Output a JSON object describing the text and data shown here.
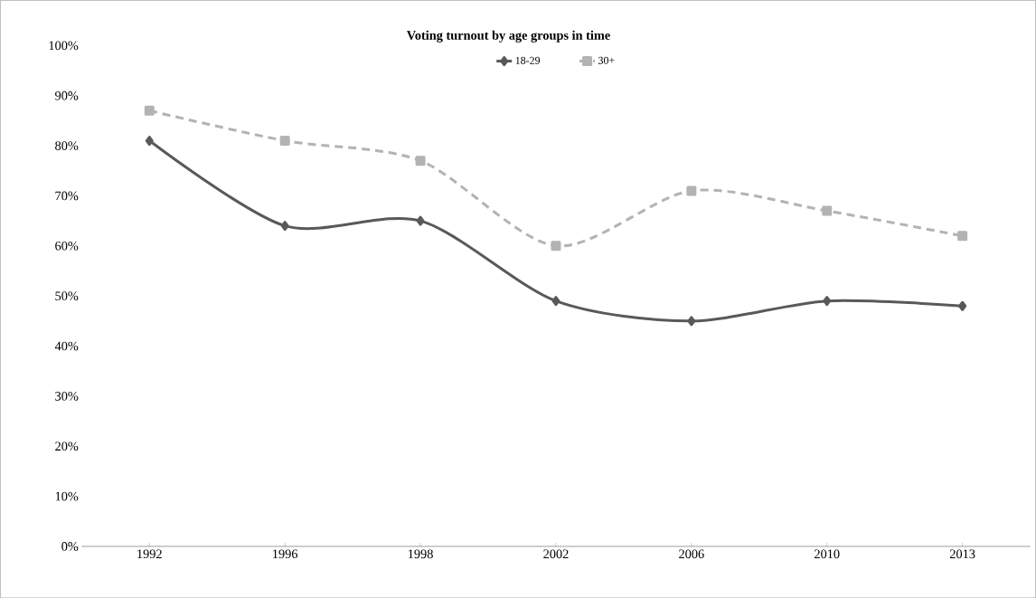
{
  "chart_data": {
    "type": "line",
    "title": "Voting turnout by age groups in time",
    "categories": [
      "1992",
      "1996",
      "1998",
      "2002",
      "2006",
      "2010",
      "2013"
    ],
    "series": [
      {
        "name": "18-29",
        "color": "#595959",
        "values": [
          81,
          64,
          65,
          49,
          45,
          49,
          48
        ],
        "marker": "diamond",
        "line_style": "solid"
      },
      {
        "name": "30+",
        "color": "#b3b3b3",
        "values": [
          87,
          81,
          77,
          60,
          71,
          67,
          62
        ],
        "marker": "square",
        "line_style": "dashed"
      }
    ],
    "ylim": [
      0,
      100
    ],
    "yticks": [
      {
        "value": 0,
        "label": "0%"
      },
      {
        "value": 10,
        "label": "10%"
      },
      {
        "value": 20,
        "label": "20%"
      },
      {
        "value": 30,
        "label": "30%"
      },
      {
        "value": 40,
        "label": "40%"
      },
      {
        "value": 50,
        "label": "50%"
      },
      {
        "value": 60,
        "label": "60%"
      },
      {
        "value": 70,
        "label": "70%"
      },
      {
        "value": 80,
        "label": "80%"
      },
      {
        "value": 90,
        "label": "90%"
      },
      {
        "value": 100,
        "label": "100%"
      }
    ],
    "legend": "top",
    "grid": false
  }
}
